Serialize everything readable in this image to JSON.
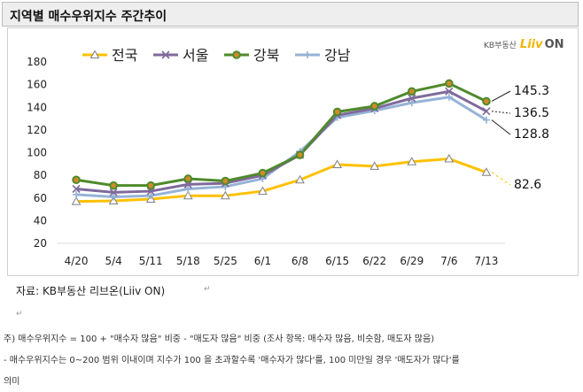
{
  "title": "지역별 매수우위지수 주간추이",
  "logo": {
    "kb": "KB부동산",
    "liiv": "Liiv",
    "on": "ON"
  },
  "source": "자료: KB부동산 리브온(Liiv ON)",
  "notes": [
    "주) 매수우위지수 = 100 + \"매수자 많음\" 비중 - \"매도자 많음\" 비중  (조사 항목: 매수자 많음, 비슷함, 매도자 많음)",
    "- 매수우위지수는 0~200 범위 이내이며 지수가 100 을 초과할수록 '매수자가 많다'를, 100 미만일 경우 '매도자가 많다'를",
    "의미"
  ],
  "chart_data": {
    "type": "line",
    "categories": [
      "4/20",
      "5/4",
      "5/11",
      "5/18",
      "5/25",
      "6/1",
      "6/8",
      "6/15",
      "6/22",
      "6/29",
      "7/6",
      "7/13"
    ],
    "ylim": [
      20,
      180
    ],
    "yticks": [
      20,
      40,
      60,
      80,
      100,
      120,
      140,
      160,
      180
    ],
    "grid": false,
    "legend_position": "top",
    "series": [
      {
        "name": "전국",
        "color": "#ffc000",
        "marker": "triangle",
        "values": [
          57,
          57.5,
          59,
          62,
          62,
          66,
          76,
          89.5,
          88,
          92,
          94.5,
          82.6
        ]
      },
      {
        "name": "서울",
        "color": "#7f6a9c",
        "marker": "x",
        "values": [
          68,
          65,
          66,
          72,
          73,
          80,
          98,
          133,
          139,
          148,
          154,
          136.5
        ]
      },
      {
        "name": "강북",
        "color": "#4e8a2b",
        "marker": "circle",
        "values": [
          76,
          71,
          71,
          77,
          75,
          82,
          98,
          136,
          141,
          154,
          161,
          145.3
        ]
      },
      {
        "name": "강남",
        "color": "#95b3d7",
        "marker": "plus",
        "values": [
          63,
          61,
          62,
          68,
          70,
          77,
          101,
          131,
          137,
          144,
          149,
          128.8
        ]
      }
    ],
    "end_labels": [
      "82.6",
      "136.5",
      "145.3",
      "128.8"
    ]
  }
}
